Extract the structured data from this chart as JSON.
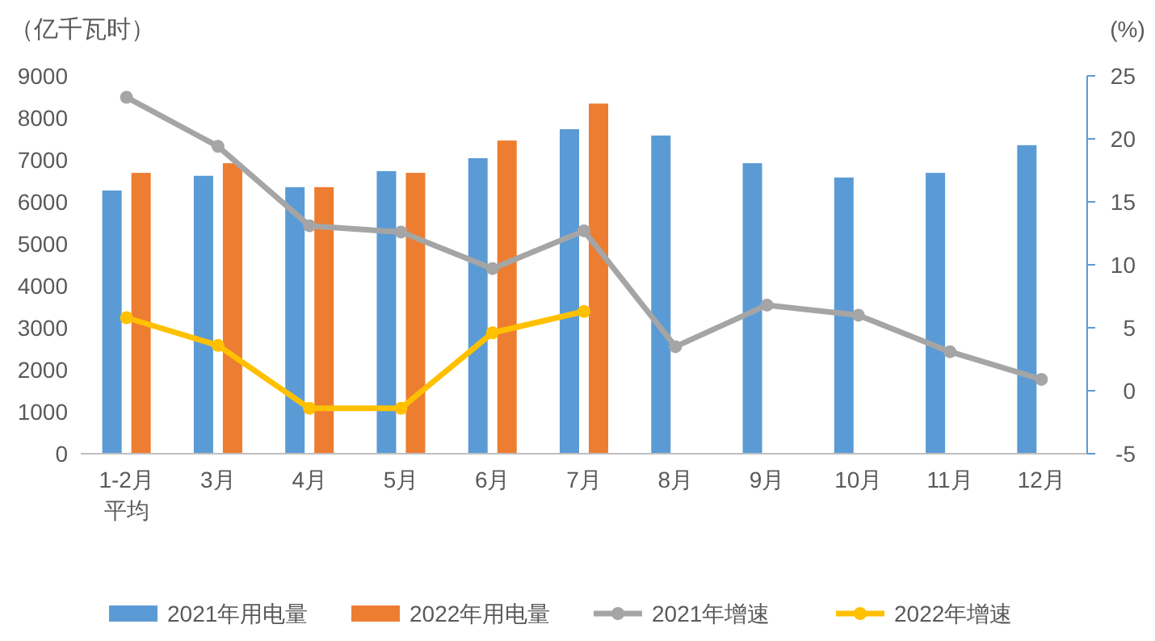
{
  "chart_data": {
    "type": "bar",
    "ylabel": "（亿千瓦时）",
    "y2label": "(%)",
    "categories": [
      "1-2月平均",
      "3月",
      "4月",
      "5月",
      "6月",
      "7月",
      "8月",
      "9月",
      "10月",
      "11月",
      "12月"
    ],
    "series": [
      {
        "name": "2021年用电量",
        "color": "#5b9bd5",
        "values": [
          6270,
          6620,
          6350,
          6730,
          7040,
          7730,
          7580,
          6920,
          6580,
          6690,
          7350
        ]
      },
      {
        "name": "2022年用电量",
        "color": "#ed7d31",
        "values": [
          6690,
          6920,
          6350,
          6690,
          7460,
          8340,
          null,
          null,
          null,
          null,
          null
        ]
      },
      {
        "name": "2021年增速",
        "type": "line",
        "axis": "y2",
        "color": "#a5a5a5",
        "values": [
          23.3,
          19.4,
          13.1,
          12.6,
          9.7,
          12.7,
          3.5,
          6.8,
          6.0,
          3.1,
          0.9
        ]
      },
      {
        "name": "2022年增速",
        "type": "line",
        "axis": "y2",
        "color": "#ffc000",
        "values": [
          5.8,
          3.6,
          -1.4,
          -1.4,
          4.6,
          6.3,
          null,
          null,
          null,
          null,
          null
        ]
      }
    ],
    "ylim": [
      0,
      9000
    ],
    "yticks": [
      0,
      1000,
      2000,
      3000,
      4000,
      5000,
      6000,
      7000,
      8000,
      9000
    ],
    "y2lim": [
      -5,
      25
    ],
    "y2ticks": [
      -5,
      0,
      5,
      10,
      15,
      20,
      25
    ],
    "grid": false,
    "legend": "bottom",
    "marker": "circle",
    "line_style": "solid"
  }
}
